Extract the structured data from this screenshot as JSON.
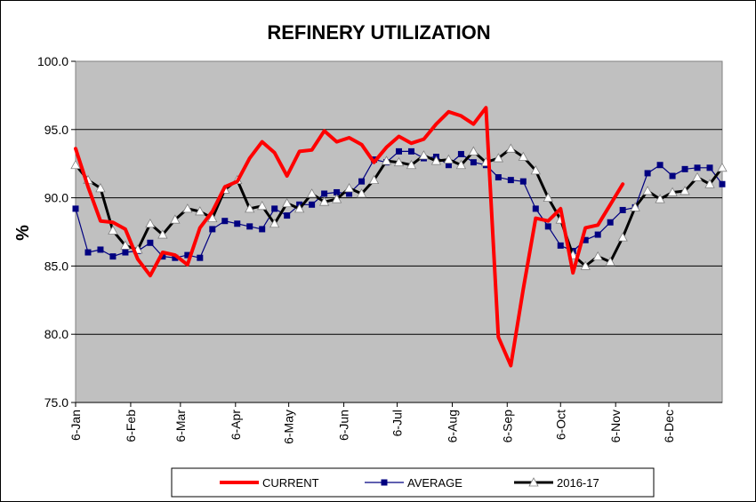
{
  "chart_data": {
    "type": "line",
    "title": "REFINERY UTILIZATION",
    "ylabel": "%",
    "xlabel": "",
    "ylim": [
      75,
      100
    ],
    "yticks": [
      "75.0",
      "80.0",
      "85.0",
      "90.0",
      "95.0",
      "100.0"
    ],
    "ytick_values": [
      75,
      80,
      85,
      90,
      95,
      100
    ],
    "grid": true,
    "legend_position": "bottom",
    "weeks_shown": 53,
    "month_labels": [
      "6-Jan",
      "6-Feb",
      "6-Mar",
      "6-Apr",
      "6-May",
      "6-Jun",
      "6-Jul",
      "6-Aug",
      "6-Sep",
      "6-Oct",
      "6-Nov",
      "6-Dec"
    ],
    "colors": {
      "plot_bg": "#c0c0c0",
      "current": "#ff0000",
      "average": "#000080",
      "prior": "#000000"
    },
    "series": [
      {
        "name": "CURRENT",
        "values": [
          93.6,
          90.8,
          88.3,
          88.2,
          87.7,
          85.5,
          84.3,
          86.0,
          85.8,
          85.1,
          87.8,
          89.0,
          90.8,
          91.2,
          92.9,
          94.1,
          93.3,
          91.6,
          93.4,
          93.5,
          94.9,
          94.1,
          94.4,
          93.9,
          92.6,
          93.7,
          94.5,
          94.0,
          94.3,
          95.4,
          96.3,
          96.0,
          95.4,
          96.6,
          79.8,
          77.7,
          83.3,
          88.5,
          88.3,
          89.2,
          84.5,
          87.8,
          88.0,
          89.5,
          91.0
        ]
      },
      {
        "name": "AVERAGE",
        "values": [
          89.2,
          86.0,
          86.2,
          85.7,
          86.0,
          86.1,
          86.7,
          85.7,
          85.6,
          85.8,
          85.6,
          87.7,
          88.3,
          88.1,
          87.9,
          87.7,
          89.2,
          88.7,
          89.5,
          89.5,
          90.3,
          90.4,
          90.3,
          91.2,
          92.8,
          92.6,
          93.4,
          93.4,
          92.9,
          93.0,
          92.4,
          93.2,
          92.6,
          92.4,
          91.5,
          91.3,
          91.2,
          89.2,
          87.9,
          86.5,
          86.1,
          86.9,
          87.3,
          88.2,
          89.1,
          89.3,
          91.8,
          92.4,
          91.6,
          92.1,
          92.2,
          92.2,
          91.0
        ]
      },
      {
        "name": "2016-17",
        "values": [
          92.4,
          91.3,
          90.7,
          87.6,
          86.5,
          86.2,
          88.1,
          87.3,
          88.4,
          89.2,
          89.0,
          88.5,
          90.6,
          91.3,
          89.2,
          89.4,
          88.1,
          89.6,
          89.2,
          90.3,
          89.7,
          89.9,
          90.7,
          90.3,
          91.3,
          92.7,
          92.6,
          92.4,
          93.1,
          92.7,
          92.8,
          92.4,
          93.4,
          92.6,
          92.9,
          93.6,
          93.0,
          92.0,
          90.0,
          88.4,
          85.8,
          85.0,
          85.7,
          85.3,
          87.1,
          89.3,
          90.5,
          89.9,
          90.4,
          90.5,
          91.5,
          91.0,
          92.2
        ]
      }
    ]
  }
}
